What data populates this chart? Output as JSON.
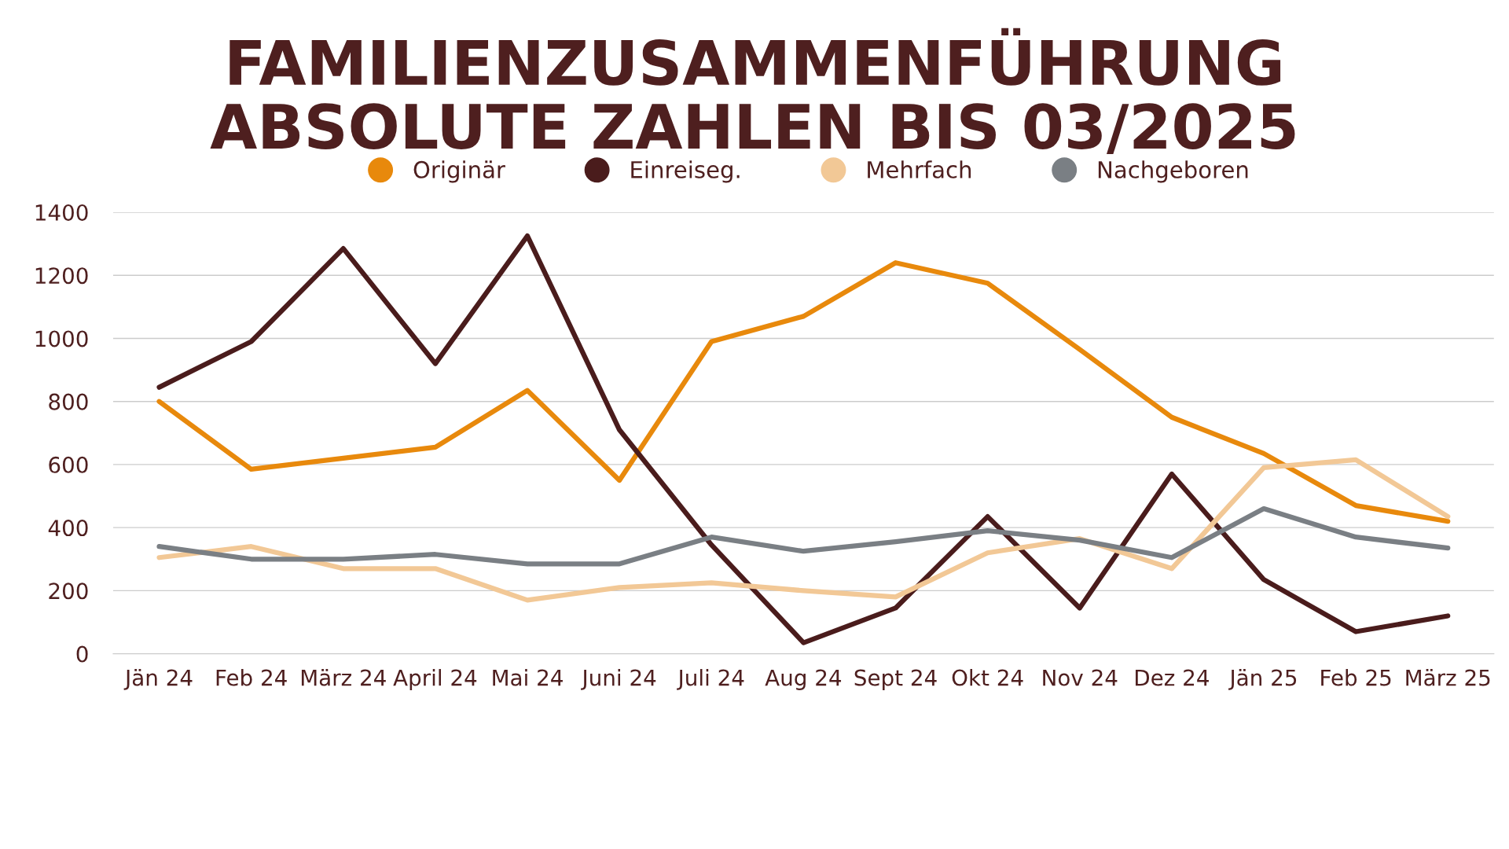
{
  "chart_data": {
    "type": "line",
    "title": "FAMILIENZUSAMMENFÜHRUNG\nABSOLUTE ZAHLEN BIS 03/2025",
    "categories": [
      "Jän 24",
      "Feb 24",
      "März 24",
      "April 24",
      "Mai 24",
      "Juni 24",
      "Juli 24",
      "Aug 24",
      "Sept 24",
      "Okt 24",
      "Nov 24",
      "Dez 24",
      "Jän 25",
      "Feb 25",
      "März 25"
    ],
    "series": [
      {
        "name": "Originär",
        "color": "#e8890c",
        "values": [
          800,
          585,
          620,
          655,
          835,
          550,
          990,
          1070,
          1240,
          1175,
          965,
          750,
          635,
          470,
          420
        ]
      },
      {
        "name": "Einreiseg.",
        "color": "#4a1c1c",
        "values": [
          845,
          990,
          1285,
          920,
          1325,
          710,
          345,
          35,
          145,
          435,
          145,
          570,
          235,
          70,
          120
        ]
      },
      {
        "name": "Mehrfach",
        "color": "#f2c896",
        "values": [
          305,
          340,
          270,
          270,
          170,
          210,
          225,
          200,
          180,
          320,
          365,
          270,
          590,
          615,
          435
        ]
      },
      {
        "name": "Nachgeboren",
        "color": "#7a7f84",
        "values": [
          340,
          300,
          300,
          315,
          285,
          285,
          370,
          325,
          355,
          390,
          360,
          305,
          460,
          370,
          335
        ]
      }
    ],
    "ylim": [
      0,
      1400
    ],
    "yticks": [
      0,
      200,
      400,
      600,
      800,
      1000,
      1200,
      1400
    ],
    "grid": "y",
    "legend": "top",
    "marker": "none",
    "line_style": "solid"
  }
}
